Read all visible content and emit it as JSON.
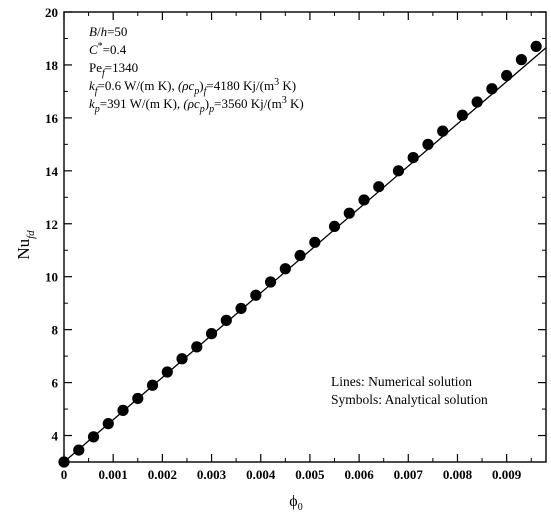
{
  "chart_data": {
    "type": "scatter",
    "title": "",
    "xlabel": {
      "main": "ϕ",
      "sub": "0"
    },
    "ylabel": {
      "main": "Nu",
      "sub": "fd"
    },
    "xlim": [
      0,
      0.0098
    ],
    "ylim": [
      3,
      20
    ],
    "x_ticks": [
      0,
      0.001,
      0.002,
      0.003,
      0.004,
      0.005,
      0.006,
      0.007,
      0.008,
      0.009
    ],
    "x_tick_labels": [
      "0",
      "0.001",
      "0.002",
      "0.003",
      "0.004",
      "0.005",
      "0.006",
      "0.007",
      "0.008",
      "0.009"
    ],
    "y_ticks": [
      4,
      6,
      8,
      10,
      12,
      14,
      16,
      18,
      20
    ],
    "y_tick_labels": [
      "4",
      "6",
      "8",
      "10",
      "12",
      "14",
      "16",
      "18",
      "20"
    ],
    "grid": false,
    "series": [
      {
        "name": "Numerical solution",
        "kind": "line",
        "color": "#000000",
        "x": [
          0,
          0.0098
        ],
        "y": [
          3.0,
          18.65
        ]
      },
      {
        "name": "Analytical solution",
        "kind": "scatter",
        "color": "#000000",
        "x": [
          0,
          0.0003,
          0.0006,
          0.0009,
          0.0012,
          0.0015,
          0.0018,
          0.0021,
          0.0024,
          0.0027,
          0.003,
          0.0033,
          0.0036,
          0.0039,
          0.0042,
          0.0045,
          0.0048,
          0.0051,
          0.0055,
          0.0058,
          0.0061,
          0.0064,
          0.0068,
          0.0071,
          0.0074,
          0.0077,
          0.0081,
          0.0084,
          0.0087,
          0.009,
          0.0093,
          0.0096
        ],
        "y": [
          3.0,
          3.45,
          3.95,
          4.45,
          4.95,
          5.4,
          5.9,
          6.4,
          6.9,
          7.35,
          7.85,
          8.35,
          8.8,
          9.3,
          9.8,
          10.3,
          10.8,
          11.3,
          11.9,
          12.4,
          12.9,
          13.4,
          14.0,
          14.5,
          15.0,
          15.5,
          16.1,
          16.6,
          17.1,
          17.6,
          18.2,
          18.7
        ]
      }
    ],
    "annotations": {
      "params": [
        [
          "B",
          "/",
          "h",
          "=50"
        ],
        [
          "C",
          "*",
          "=0.4"
        ],
        [
          "Pe",
          "f",
          "=1340"
        ],
        [
          "k",
          "f",
          "=0.6 W/(m K), ",
          "(ρc",
          "p",
          ")",
          "f",
          "=4180 Kj/(m",
          "3",
          " K)"
        ],
        [
          "k",
          "p",
          "=391 W/(m K), ",
          "(ρc",
          "p",
          ")",
          "p",
          "=3560 Kj/(m",
          "3",
          " K)"
        ]
      ],
      "legend_lines": "Lines: Numerical solution",
      "legend_symbols": "Symbols: Analytical solution"
    }
  }
}
